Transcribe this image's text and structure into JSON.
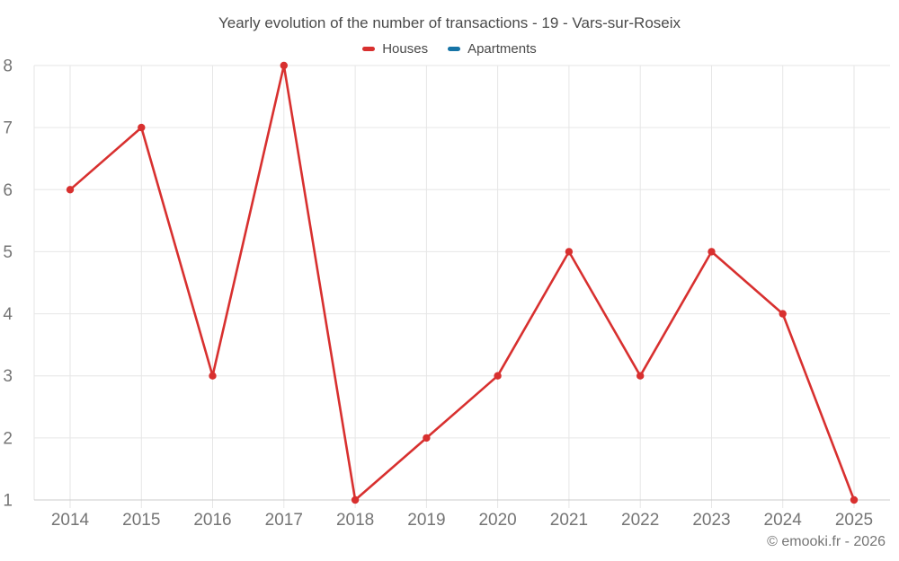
{
  "title": "Yearly evolution of the number of transactions - 19 - Vars-sur-Roseix",
  "legend": {
    "items": [
      {
        "label": "Houses",
        "color": "#d8302f"
      },
      {
        "label": "Apartments",
        "color": "#1674a6"
      }
    ]
  },
  "footer": {
    "credit": "© emooki.fr - 2026"
  },
  "colors": {
    "background": "#ffffff",
    "grid": "#e6e6e6",
    "axis_line": "#cccccc",
    "tick_label": "#757575",
    "heading_text": "#4a4a4a",
    "houses_series": "#d8302f",
    "apartments_series": "#1674a6"
  },
  "chart_data": {
    "type": "line",
    "title": "Yearly evolution of the number of transactions - 19 - Vars-sur-Roseix",
    "categories": [
      "2014",
      "2015",
      "2016",
      "2017",
      "2018",
      "2019",
      "2020",
      "2021",
      "2022",
      "2023",
      "2024",
      "2025"
    ],
    "series": [
      {
        "name": "Houses",
        "color": "#d8302f",
        "values": [
          6,
          7,
          3,
          8,
          1,
          2,
          3,
          5,
          3,
          5,
          4,
          1
        ]
      },
      {
        "name": "Apartments",
        "color": "#1674a6",
        "values": []
      }
    ],
    "xlabel": "",
    "ylabel": "",
    "ylim": [
      1,
      8
    ],
    "yticks": [
      1,
      2,
      3,
      4,
      5,
      6,
      7,
      8
    ],
    "grid": true,
    "legend_position": "top",
    "marker": "circle",
    "annotations": []
  }
}
